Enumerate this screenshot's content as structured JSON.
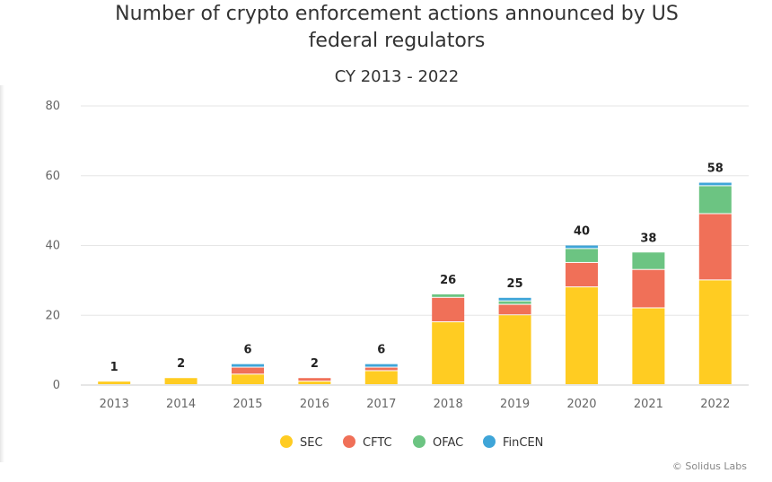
{
  "chart_data": {
    "type": "bar",
    "stacked": true,
    "title": "Number of crypto enforcement actions announced by US federal regulators",
    "title_lines": [
      "Number of crypto enforcement actions announced by US",
      "federal regulators"
    ],
    "subtitle": "CY 2013 - 2022",
    "categories": [
      "2013",
      "2014",
      "2015",
      "2016",
      "2017",
      "2018",
      "2019",
      "2020",
      "2021",
      "2022"
    ],
    "series": [
      {
        "name": "SEC",
        "color": "#FFCC22",
        "values": [
          1,
          2,
          3,
          1,
          4,
          18,
          20,
          28,
          22,
          30
        ]
      },
      {
        "name": "CFTC",
        "color": "#F07058",
        "values": [
          0,
          0,
          2,
          1,
          1,
          7,
          3,
          7,
          11,
          19
        ]
      },
      {
        "name": "OFAC",
        "color": "#6CC482",
        "values": [
          0,
          0,
          0,
          0,
          0,
          1,
          1,
          4,
          5,
          8
        ]
      },
      {
        "name": "FinCEN",
        "color": "#3FA5D8",
        "values": [
          0,
          0,
          1,
          0,
          1,
          0,
          1,
          1,
          0,
          1
        ]
      }
    ],
    "totals": [
      1,
      2,
      6,
      2,
      6,
      26,
      25,
      40,
      38,
      58
    ],
    "ylim": [
      0,
      80
    ],
    "yticks": [
      0,
      20,
      40,
      60,
      80
    ],
    "xlabel": "",
    "ylabel": "",
    "grid": true,
    "legend_position": "bottom-center"
  },
  "credit": "© Solidus Labs"
}
